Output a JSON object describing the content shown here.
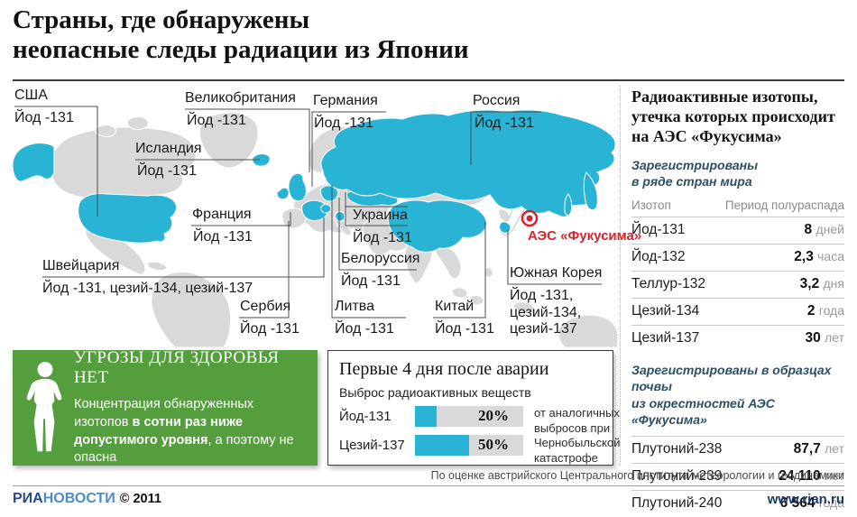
{
  "title": "Страны, где обнаружены\nнеопасные следы радиации из Японии",
  "map": {
    "fukushima_label": "АЭС «Фукусима»",
    "labels": [
      {
        "name": "США",
        "isotopes": "Йод -131"
      },
      {
        "name": "Великобритания",
        "isotopes": "Йод -131"
      },
      {
        "name": "Исландия",
        "isotopes": "Йод -131"
      },
      {
        "name": "Германия",
        "isotopes": "Йод -131"
      },
      {
        "name": "Россия",
        "isotopes": "Йод -131"
      },
      {
        "name": "Франция",
        "isotopes": "Йод -131"
      },
      {
        "name": "Украина",
        "isotopes": "Йод -131"
      },
      {
        "name": "Швейцария",
        "isotopes": "Йод -131, цезий-134, цезий-137"
      },
      {
        "name": "Белоруссия",
        "isotopes": "Йод -131"
      },
      {
        "name": "Сербия",
        "isotopes": "Йод -131"
      },
      {
        "name": "Литва",
        "isotopes": "Йод -131"
      },
      {
        "name": "Китай",
        "isotopes": "Йод -131"
      },
      {
        "name": "Южная Корея",
        "isotopes": "Йод -131,\nцезий-134,\nцезий-137"
      }
    ]
  },
  "health_box": {
    "title": "УГРОЗЫ ДЛЯ ЗДОРОВЬЯ НЕТ",
    "text_before": "Концентрация обнаруженных изотопов ",
    "text_bold": "в сотни раз ниже допустимого уровня",
    "text_after": ", а поэтому не опасна"
  },
  "chart_data": {
    "type": "bar",
    "title": "Первые 4 дня после аварии",
    "subtitle": "Выброс радиоактивных веществ",
    "categories": [
      "Йод-131",
      "Цезий-137"
    ],
    "values": [
      20,
      50
    ],
    "value_labels": [
      "20%",
      "50%"
    ],
    "xlim": [
      0,
      100
    ],
    "note": "от аналогичных выбросов при Чернобыльской катастрофе"
  },
  "right_panel": {
    "heading": "Радиоактивные изотопы, утечка которых происходит на АЭС «Фукусима»",
    "note1": "Зарегистрированы\nв ряде стран мира",
    "table1": {
      "col_isotope": "Изотоп",
      "col_halflife": "Период полураспада",
      "rows": [
        {
          "isotope": "Йод-131",
          "value": "8",
          "unit": "дней"
        },
        {
          "isotope": "Йод-132",
          "value": "2,3",
          "unit": "часа"
        },
        {
          "isotope": "Теллур-132",
          "value": "3,2",
          "unit": "дня"
        },
        {
          "isotope": "Цезий-134",
          "value": "2",
          "unit": "года"
        },
        {
          "isotope": "Цезий-137",
          "value": "30",
          "unit": "лет"
        }
      ]
    },
    "note2": "Зарегистрированы в образцах почвы\nиз окрестностей АЭС «Фукусима»",
    "table2": {
      "rows": [
        {
          "isotope": "Плутоний-238",
          "value": "87,7",
          "unit": "лет"
        },
        {
          "isotope": "Плутоний-239",
          "value": "24 110",
          "unit": "лет"
        },
        {
          "isotope": "Плутоний-240",
          "value": "6 564",
          "unit": "года"
        }
      ]
    }
  },
  "footer": {
    "source": "По оценке австрийского Центрального института метеорологии и геодинамики",
    "brand1": "РИА",
    "brand2": "НОВОСТИ",
    "copyright": "© 2011",
    "site": "www.rian.ru"
  },
  "colors": {
    "highlight": "#29b4d6",
    "land": "#d9d9d9",
    "accent_red": "#d8232a",
    "green": "#549e3e",
    "note_blue": "#2d4f63"
  }
}
